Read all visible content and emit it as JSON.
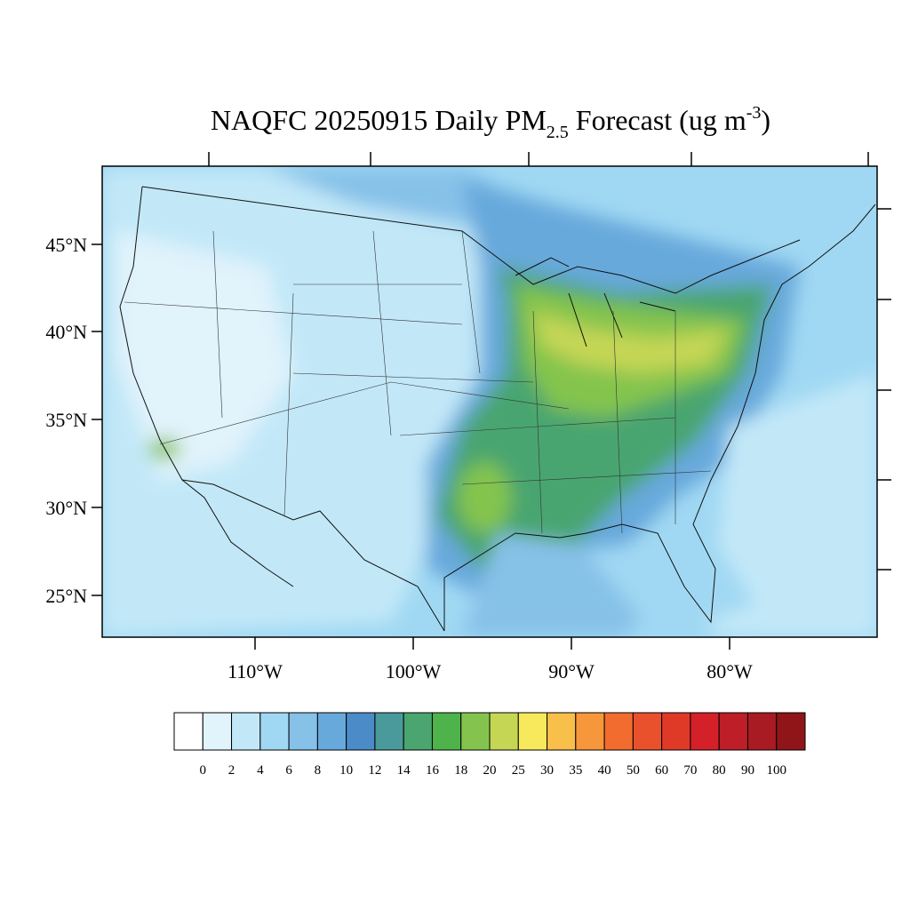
{
  "title": {
    "main": "NAQFC 20250915 Daily PM",
    "subscript": "2.5",
    "middle": " Forecast (ug m",
    "superscript": "-3",
    "end": ")"
  },
  "map": {
    "lat_labels": [
      "45°N",
      "40°N",
      "35°N",
      "30°N",
      "25°N"
    ],
    "lon_labels": [
      "110°W",
      "100°W",
      "90°W",
      "80°W"
    ]
  },
  "colorbar": {
    "labels": [
      "0",
      "2",
      "4",
      "6",
      "8",
      "10",
      "12",
      "14",
      "16",
      "18",
      "20",
      "25",
      "30",
      "35",
      "40",
      "50",
      "60",
      "70",
      "80",
      "90",
      "100"
    ],
    "colors": [
      "#ffffff",
      "#e1f3fb",
      "#c2e8f8",
      "#a0d8f3",
      "#86c1e8",
      "#68a9dc",
      "#4a8bc8",
      "#4a9a9b",
      "#4aa56f",
      "#4db34a",
      "#84c44e",
      "#c5d654",
      "#f7e95b",
      "#f8bf4b",
      "#f7973c",
      "#f26c2f",
      "#e9512d",
      "#df3a28",
      "#d42029",
      "#bd1e28",
      "#a81b22",
      "#8f1519"
    ]
  }
}
